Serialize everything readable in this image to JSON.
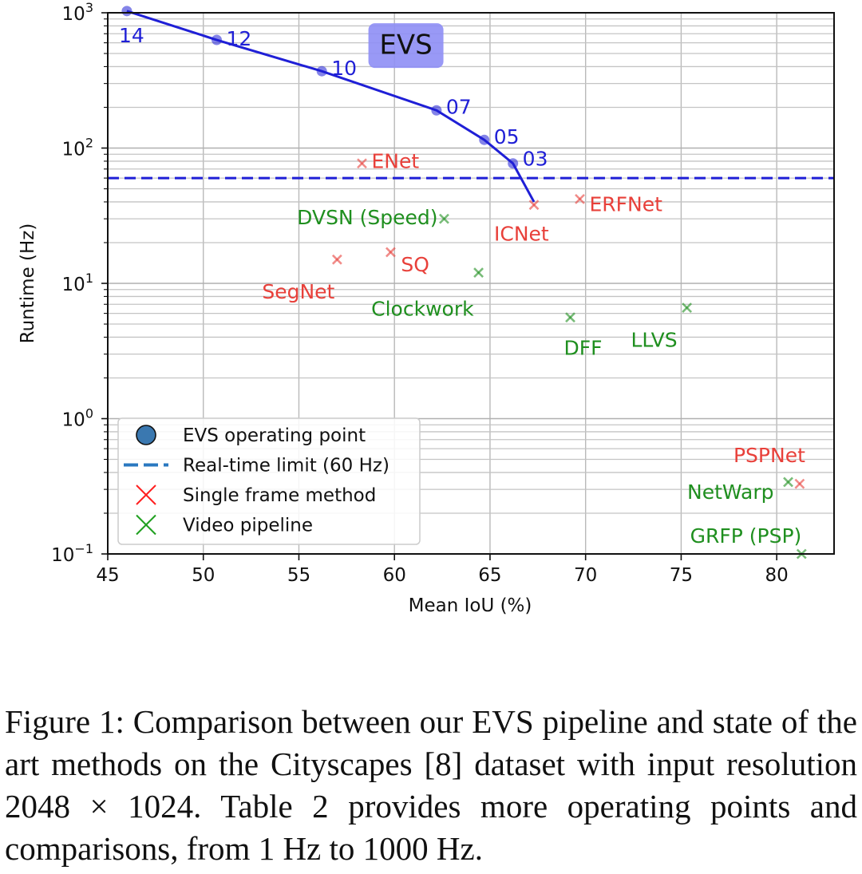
{
  "chart_data": {
    "type": "scatter",
    "title": "",
    "xlabel": "Mean IoU (%)",
    "ylabel": "Runtime (Hz)",
    "xlim": [
      45,
      83
    ],
    "ylim": [
      0.1,
      1000
    ],
    "yscale": "log",
    "grid": true,
    "x_ticks": [
      45,
      50,
      55,
      60,
      65,
      70,
      75,
      80
    ],
    "y_ticks": [
      {
        "value": 0.1,
        "base": "10",
        "exp": "−1"
      },
      {
        "value": 1,
        "base": "10",
        "exp": "0"
      },
      {
        "value": 10,
        "base": "10",
        "exp": "1"
      },
      {
        "value": 100,
        "base": "10",
        "exp": "2"
      },
      {
        "value": 1000,
        "base": "10",
        "exp": "3"
      }
    ],
    "annotation": {
      "text": "EVS",
      "x": 60.6,
      "y": 580
    },
    "colors": {
      "evs": "#1f1fd6",
      "single": "#e8403a",
      "video": "#1f8f1f",
      "realtime": "#1f1fd6"
    },
    "realtime_limit": {
      "label": "Real-time limit (60 Hz)",
      "y": 60
    },
    "series": [
      {
        "name": "EVS operating point",
        "kind": "evs",
        "points": [
          {
            "label": "14",
            "x": 46.0,
            "y": 1030
          },
          {
            "label": "12",
            "x": 50.7,
            "y": 630
          },
          {
            "label": "10",
            "x": 56.2,
            "y": 370
          },
          {
            "label": "07",
            "x": 62.2,
            "y": 190
          },
          {
            "label": "05",
            "x": 64.7,
            "y": 115
          },
          {
            "label": "03",
            "x": 66.2,
            "y": 77
          }
        ],
        "line_end": {
          "x": 67.3,
          "y": 40
        }
      },
      {
        "name": "Single frame method",
        "kind": "single",
        "points": [
          {
            "label": "ENet",
            "x": 58.3,
            "y": 77
          },
          {
            "label": "ICNet",
            "x": 67.3,
            "y": 38
          },
          {
            "label": "ERFNet",
            "x": 69.7,
            "y": 42
          },
          {
            "label": "SQ",
            "x": 59.8,
            "y": 17
          },
          {
            "label": "SegNet",
            "x": 57.0,
            "y": 15
          },
          {
            "label": "PSPNet",
            "x": 81.2,
            "y": 0.33
          }
        ]
      },
      {
        "name": "Video pipeline",
        "kind": "video",
        "points": [
          {
            "label": "DVSN (Speed)",
            "x": 62.6,
            "y": 30
          },
          {
            "label": "Clockwork",
            "x": 64.4,
            "y": 12
          },
          {
            "label": "DFF",
            "x": 69.2,
            "y": 5.6
          },
          {
            "label": "LLVS",
            "x": 75.3,
            "y": 6.6
          },
          {
            "label": "NetWarp",
            "x": 80.6,
            "y": 0.34
          },
          {
            "label": "GRFP (PSP)",
            "x": 81.3,
            "y": 0.1
          }
        ]
      }
    ],
    "legend": {
      "position": "bottom-left",
      "entries": [
        {
          "label": "EVS operating point",
          "marker": "circle"
        },
        {
          "label": "Real-time limit (60 Hz)",
          "marker": "dash"
        },
        {
          "label": "Single frame method",
          "marker": "x-red"
        },
        {
          "label": "Video pipeline",
          "marker": "x-green"
        }
      ]
    }
  },
  "caption": "Figure 1: Comparison between our EVS pipeline and state of the art methods on the Cityscapes [8] dataset with input resolution 2048 × 1024. Table 2 provides more operating points and comparisons, from 1 Hz to 1000 Hz."
}
